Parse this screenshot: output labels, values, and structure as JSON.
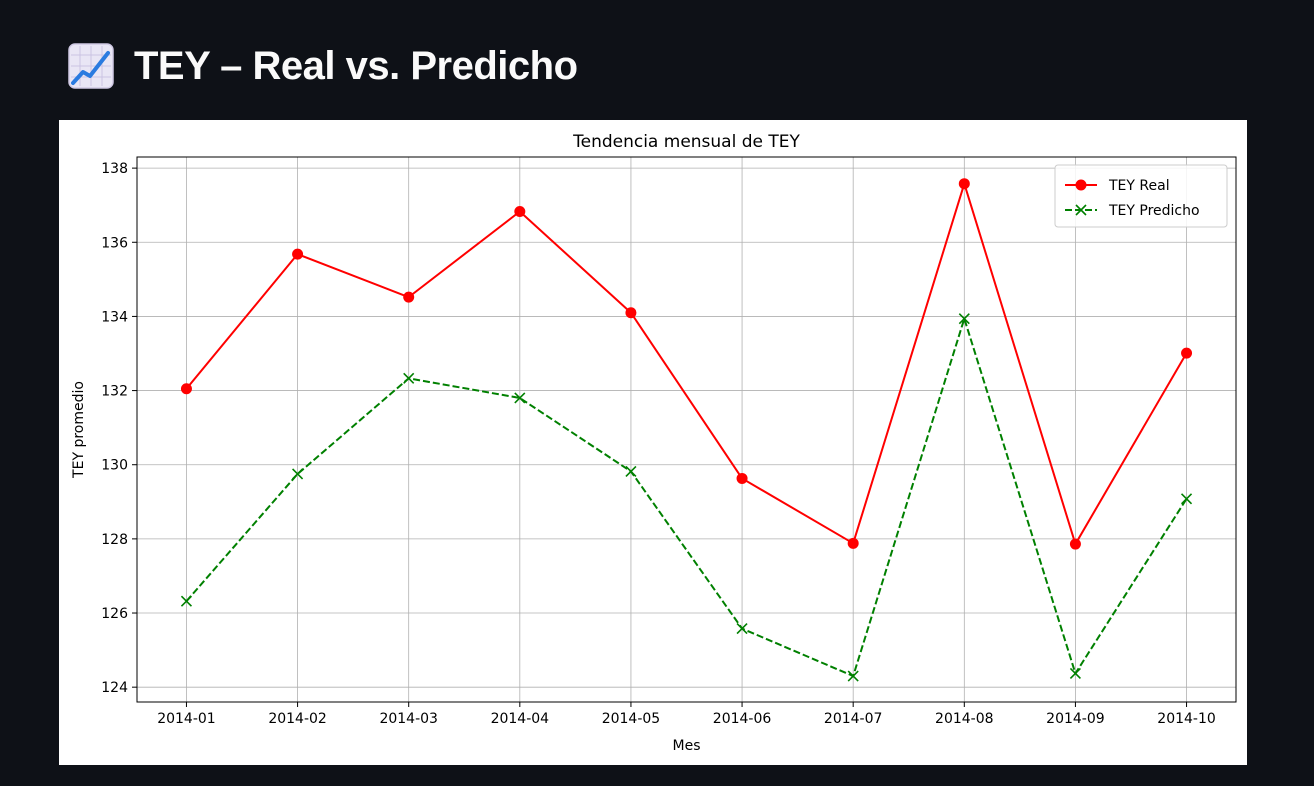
{
  "header": {
    "title": "TEY – Real vs. Predicho",
    "icon": "chart-increasing-icon"
  },
  "chart_data": {
    "type": "line",
    "title": "Tendencia mensual de TEY",
    "xlabel": "Mes",
    "ylabel": "TEY promedio",
    "categories": [
      "2014-01",
      "2014-02",
      "2014-03",
      "2014-04",
      "2014-05",
      "2014-06",
      "2014-07",
      "2014-08",
      "2014-09",
      "2014-10"
    ],
    "ylim": [
      123.6,
      138.3
    ],
    "yticks": [
      124,
      126,
      128,
      130,
      132,
      134,
      136,
      138
    ],
    "grid": true,
    "legend_position": "upper right",
    "series": [
      {
        "name": "TEY Real",
        "color": "#ff0000",
        "style": "solid",
        "marker": "circle",
        "values": [
          132.05,
          135.68,
          134.52,
          136.83,
          134.1,
          129.63,
          127.88,
          137.58,
          127.86,
          133.01
        ]
      },
      {
        "name": "TEY Predicho",
        "color": "#008000",
        "style": "dashed",
        "marker": "x",
        "values": [
          126.32,
          129.75,
          132.33,
          131.8,
          129.82,
          125.58,
          124.3,
          133.94,
          124.37,
          129.08
        ]
      }
    ]
  }
}
